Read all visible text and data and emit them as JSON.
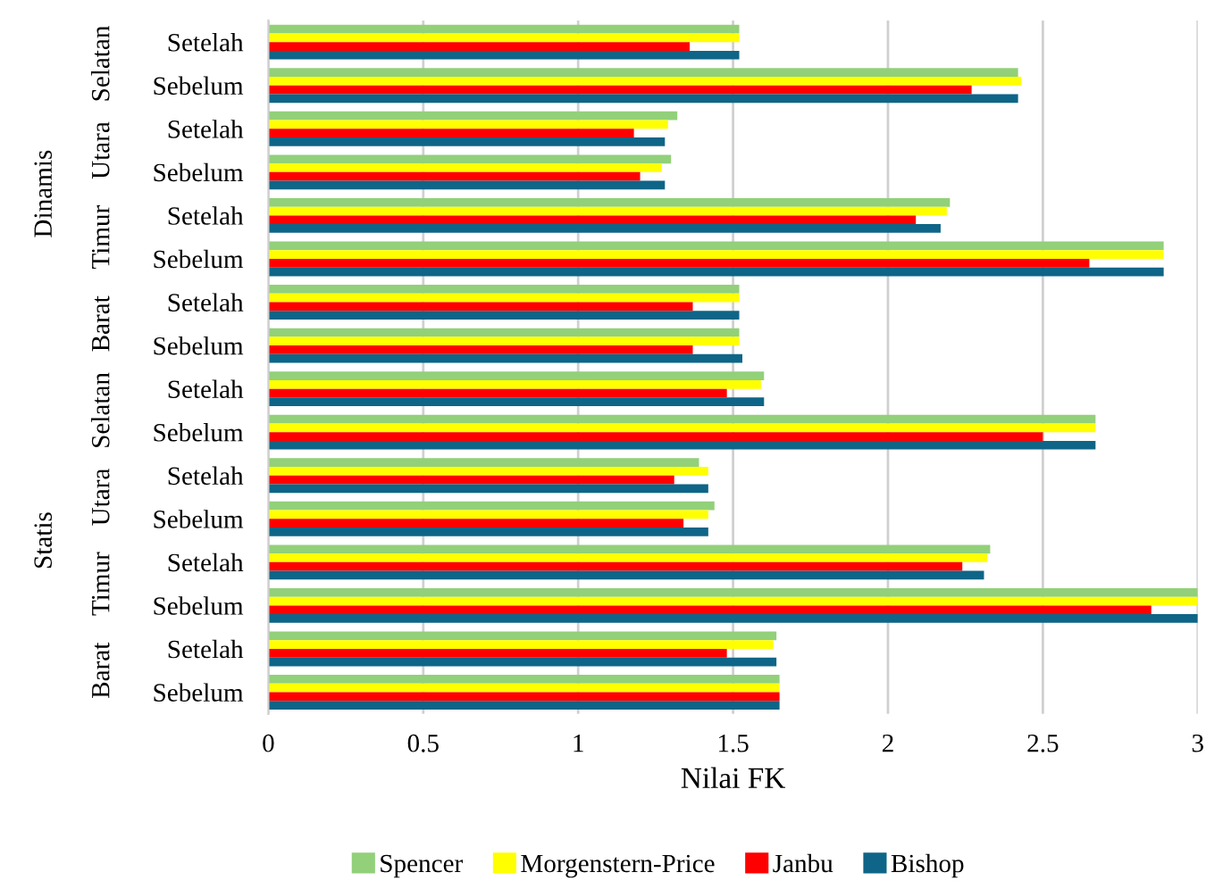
{
  "chart_data": {
    "type": "bar",
    "orientation": "horizontal",
    "xlabel": "Nilai FK",
    "categories": [
      "Setelah",
      "Sebelum",
      "Setelah",
      "Sebelum",
      "Setelah",
      "Sebelum",
      "Setelah",
      "Sebelum",
      "Setelah",
      "Sebelum",
      "Setelah",
      "Sebelum",
      "Setelah",
      "Sebelum",
      "Setelah",
      "Sebelum"
    ],
    "annotations": [
      "Selatan",
      "Utara",
      "Timur",
      "Barat",
      "Selatan",
      "Utara",
      "Timur",
      "Barat",
      "Dinamis",
      "Statis"
    ],
    "series": [
      {
        "name": "Spencer",
        "color": "#92d07a",
        "values": [
          1.52,
          2.42,
          1.32,
          1.3,
          2.2,
          2.89,
          1.52,
          1.52,
          1.6,
          2.67,
          1.39,
          1.44,
          2.33,
          3.0,
          1.64,
          1.65
        ]
      },
      {
        "name": "Morgenstern-Price",
        "color": "#ffff00",
        "values": [
          1.52,
          2.43,
          1.29,
          1.27,
          2.19,
          2.89,
          1.52,
          1.52,
          1.59,
          2.67,
          1.42,
          1.42,
          2.32,
          3.0,
          1.63,
          1.65
        ]
      },
      {
        "name": "Janbu",
        "color": "#ff0000",
        "values": [
          1.36,
          2.27,
          1.18,
          1.2,
          2.09,
          2.65,
          1.37,
          1.37,
          1.48,
          2.5,
          1.31,
          1.34,
          2.24,
          2.85,
          1.48,
          1.65
        ]
      },
      {
        "name": "Bishop",
        "color": "#0e6587",
        "values": [
          1.52,
          2.42,
          1.28,
          1.28,
          2.17,
          2.89,
          1.52,
          1.53,
          1.6,
          2.67,
          1.42,
          1.42,
          2.31,
          3.0,
          1.64,
          1.65
        ]
      }
    ],
    "xlim": [
      0,
      3
    ],
    "xticks": [
      0,
      0.5,
      1,
      1.5,
      2,
      2.5,
      3
    ],
    "grid": "x",
    "legend": "bottom"
  }
}
